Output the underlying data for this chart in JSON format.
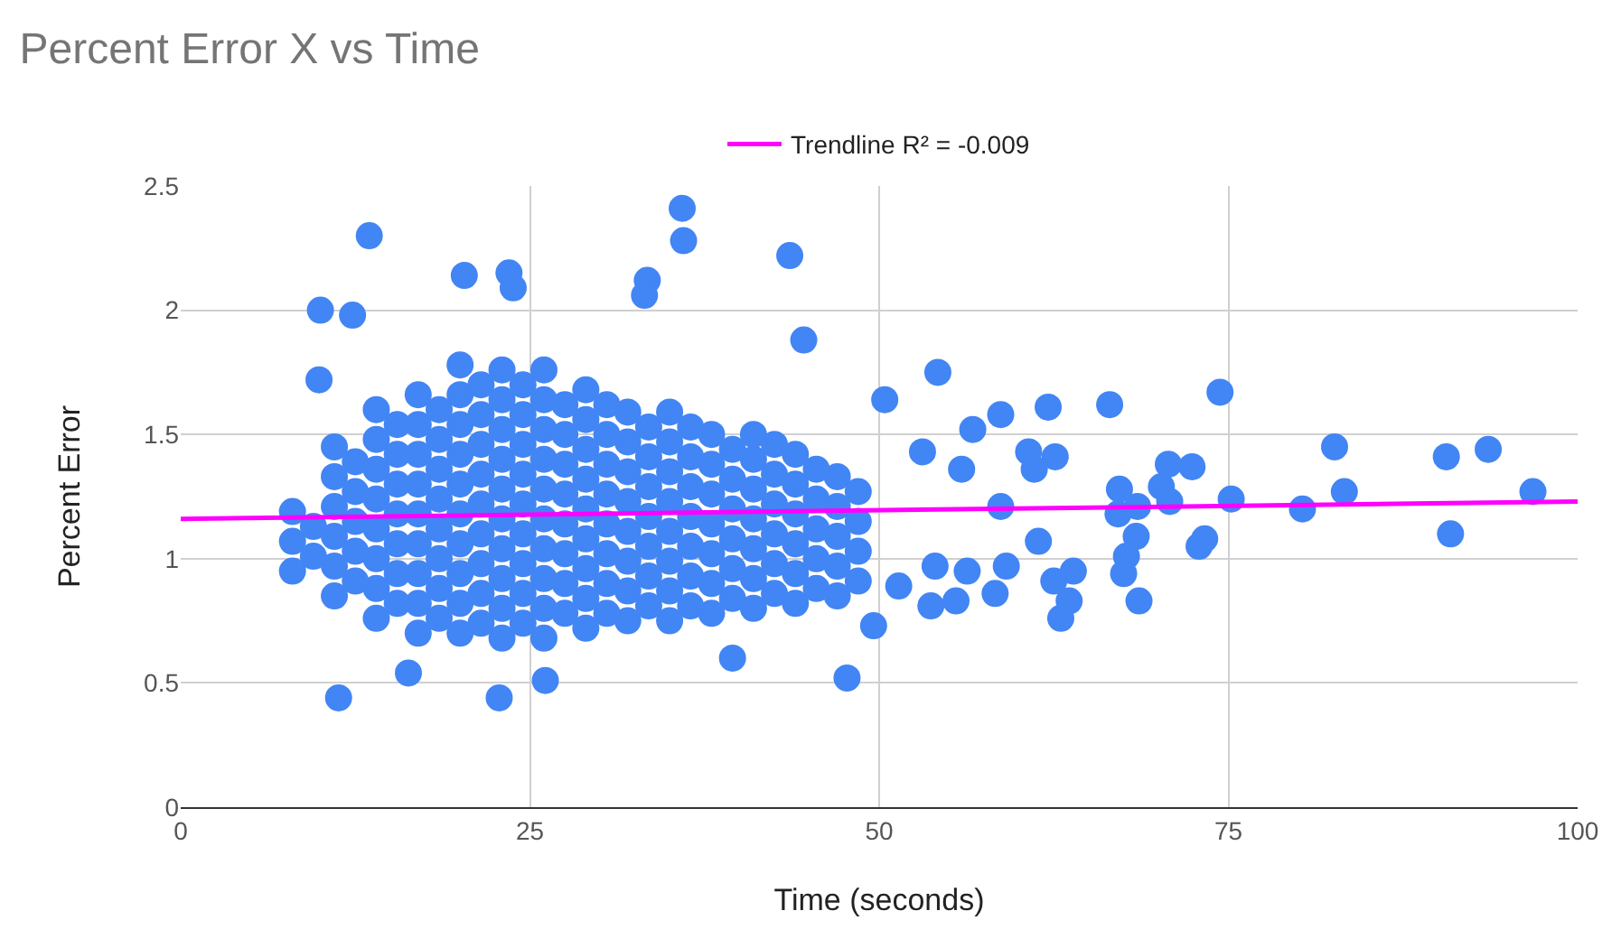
{
  "chart_data": {
    "type": "scatter",
    "title": "Percent Error X vs Time",
    "xlabel": "Time (seconds)",
    "ylabel": "Percent Error",
    "xlim": [
      0,
      100
    ],
    "xticks": [
      0,
      25,
      50,
      75,
      100
    ],
    "ylim": [
      0,
      2.5
    ],
    "yticks": [
      0,
      0.5,
      1,
      1.5,
      2,
      2.5
    ],
    "grid": true,
    "legend": "top",
    "series": [
      {
        "color": "#4285f4",
        "marker": "circle",
        "x": [
          8,
          8,
          8,
          11,
          11,
          11,
          11,
          11,
          11,
          14,
          14,
          14,
          14,
          14,
          14,
          14,
          14,
          17,
          17,
          17,
          17,
          17,
          17,
          17,
          17,
          17,
          20,
          20,
          20,
          20,
          20,
          20,
          20,
          20,
          20,
          20,
          23,
          23,
          23,
          23,
          23,
          23,
          23,
          23,
          23,
          23,
          26,
          26,
          26,
          26,
          26,
          26,
          26,
          26,
          26,
          26,
          29,
          29,
          29,
          29,
          29,
          29,
          29,
          29,
          29,
          32,
          32,
          32,
          32,
          32,
          32,
          32,
          32,
          35,
          35,
          35,
          35,
          35,
          35,
          35,
          35,
          38,
          38,
          38,
          38,
          38,
          38,
          38,
          41,
          41,
          41,
          41,
          41,
          41,
          41,
          44,
          44,
          44,
          44,
          44,
          44,
          47,
          47,
          47,
          47,
          47,
          9.5,
          9.5,
          12.5,
          12.5,
          12.5,
          12.5,
          12.5,
          15.5,
          15.5,
          15.5,
          15.5,
          15.5,
          15.5,
          15.5,
          18.5,
          18.5,
          18.5,
          18.5,
          18.5,
          18.5,
          18.5,
          18.5,
          21.5,
          21.5,
          21.5,
          21.5,
          21.5,
          21.5,
          21.5,
          21.5,
          21.5,
          24.5,
          24.5,
          24.5,
          24.5,
          24.5,
          24.5,
          24.5,
          24.5,
          24.5,
          27.5,
          27.5,
          27.5,
          27.5,
          27.5,
          27.5,
          27.5,
          27.5,
          30.5,
          30.5,
          30.5,
          30.5,
          30.5,
          30.5,
          30.5,
          30.5,
          33.5,
          33.5,
          33.5,
          33.5,
          33.5,
          33.5,
          33.5,
          36.5,
          36.5,
          36.5,
          36.5,
          36.5,
          36.5,
          36.5,
          39.5,
          39.5,
          39.5,
          39.5,
          39.5,
          39.5,
          42.5,
          42.5,
          42.5,
          42.5,
          42.5,
          42.5,
          45.5,
          45.5,
          45.5,
          45.5,
          45.5,
          48.5,
          48.5,
          48.5,
          48.5,
          13.5,
          35.9,
          36.0,
          43.6,
          20.3,
          23.5,
          23.8,
          33.4,
          33.2,
          10.0,
          12.3,
          44.6,
          9.9,
          11.3,
          22.8,
          47.7,
          39.5,
          16.3,
          26.1,
          54.2,
          74.4,
          82.6,
          90.6,
          93.6,
          83.3,
          96.8,
          80.3,
          90.9,
          75.2,
          72.9,
          73.3,
          72.4,
          70.7,
          70.2,
          70.8,
          67.2,
          68.5,
          67.1,
          68.4,
          67.7,
          67.5,
          68.6,
          66.5,
          63.0,
          63.6,
          63.9,
          62.5,
          62.6,
          62.1,
          58.7,
          56.7,
          58.7,
          59.1,
          58.3,
          55.5,
          53.7,
          51.4,
          49.6,
          50.4,
          60.7,
          61.1,
          61.4,
          55.9,
          53.1,
          56.3,
          54.0
        ],
        "values": [
          0.95,
          1.07,
          1.19,
          0.85,
          0.97,
          1.09,
          1.21,
          1.33,
          1.45,
          0.76,
          0.88,
          1.0,
          1.12,
          1.24,
          1.36,
          1.48,
          1.6,
          0.7,
          0.82,
          0.94,
          1.06,
          1.18,
          1.3,
          1.42,
          1.54,
          1.66,
          0.7,
          0.82,
          0.94,
          1.06,
          1.18,
          1.3,
          1.42,
          1.54,
          1.66,
          1.78,
          0.68,
          0.8,
          0.92,
          1.04,
          1.16,
          1.28,
          1.4,
          1.52,
          1.64,
          1.76,
          0.68,
          0.8,
          0.92,
          1.04,
          1.16,
          1.28,
          1.4,
          1.52,
          1.64,
          1.76,
          0.72,
          0.84,
          0.96,
          1.08,
          1.2,
          1.32,
          1.44,
          1.56,
          1.68,
          0.75,
          0.87,
          0.99,
          1.11,
          1.23,
          1.35,
          1.47,
          1.59,
          0.75,
          0.87,
          0.99,
          1.11,
          1.23,
          1.35,
          1.47,
          1.59,
          0.78,
          0.9,
          1.02,
          1.14,
          1.26,
          1.38,
          1.5,
          0.8,
          0.92,
          1.04,
          1.16,
          1.28,
          1.4,
          1.5,
          0.82,
          0.94,
          1.06,
          1.18,
          1.3,
          1.42,
          0.85,
          0.97,
          1.09,
          1.21,
          1.33,
          1.01,
          1.13,
          0.91,
          1.03,
          1.15,
          1.27,
          1.39,
          0.82,
          0.94,
          1.06,
          1.18,
          1.3,
          1.42,
          1.54,
          0.76,
          0.88,
          1.0,
          1.12,
          1.24,
          1.36,
          1.48,
          1.6,
          0.74,
          0.86,
          0.98,
          1.1,
          1.22,
          1.34,
          1.46,
          1.58,
          1.7,
          0.74,
          0.86,
          0.98,
          1.1,
          1.22,
          1.34,
          1.46,
          1.58,
          1.7,
          0.78,
          0.9,
          1.02,
          1.14,
          1.26,
          1.38,
          1.5,
          1.62,
          0.78,
          0.9,
          1.02,
          1.14,
          1.26,
          1.38,
          1.5,
          1.62,
          0.81,
          0.93,
          1.05,
          1.17,
          1.29,
          1.41,
          1.53,
          0.81,
          0.93,
          1.05,
          1.17,
          1.29,
          1.41,
          1.53,
          0.84,
          0.96,
          1.08,
          1.2,
          1.32,
          1.44,
          0.86,
          0.98,
          1.1,
          1.22,
          1.34,
          1.46,
          0.88,
          1.0,
          1.12,
          1.24,
          1.36,
          0.91,
          1.03,
          1.15,
          1.27,
          2.3,
          2.41,
          2.28,
          2.22,
          2.14,
          2.15,
          2.09,
          2.12,
          2.06,
          2.0,
          1.98,
          1.88,
          1.72,
          0.44,
          0.44,
          0.52,
          0.6,
          0.54,
          0.51,
          1.75,
          1.67,
          1.45,
          1.41,
          1.44,
          1.27,
          1.27,
          1.2,
          1.1,
          1.24,
          1.05,
          1.08,
          1.37,
          1.38,
          1.29,
          1.23,
          1.28,
          1.21,
          1.18,
          1.09,
          1.01,
          0.94,
          0.83,
          1.62,
          0.76,
          0.83,
          0.95,
          0.91,
          1.41,
          1.61,
          1.58,
          1.52,
          1.21,
          0.97,
          0.86,
          0.83,
          0.81,
          0.89,
          0.73,
          1.64,
          1.43,
          1.36,
          1.07,
          1.36,
          1.43,
          0.95,
          0.97
        ]
      },
      {
        "type": "line",
        "name": "Trendline R² = -0.009",
        "color": "#ff00ff",
        "marker": "none",
        "x": [
          0,
          100
        ],
        "values": [
          1.16,
          1.23
        ]
      }
    ]
  }
}
